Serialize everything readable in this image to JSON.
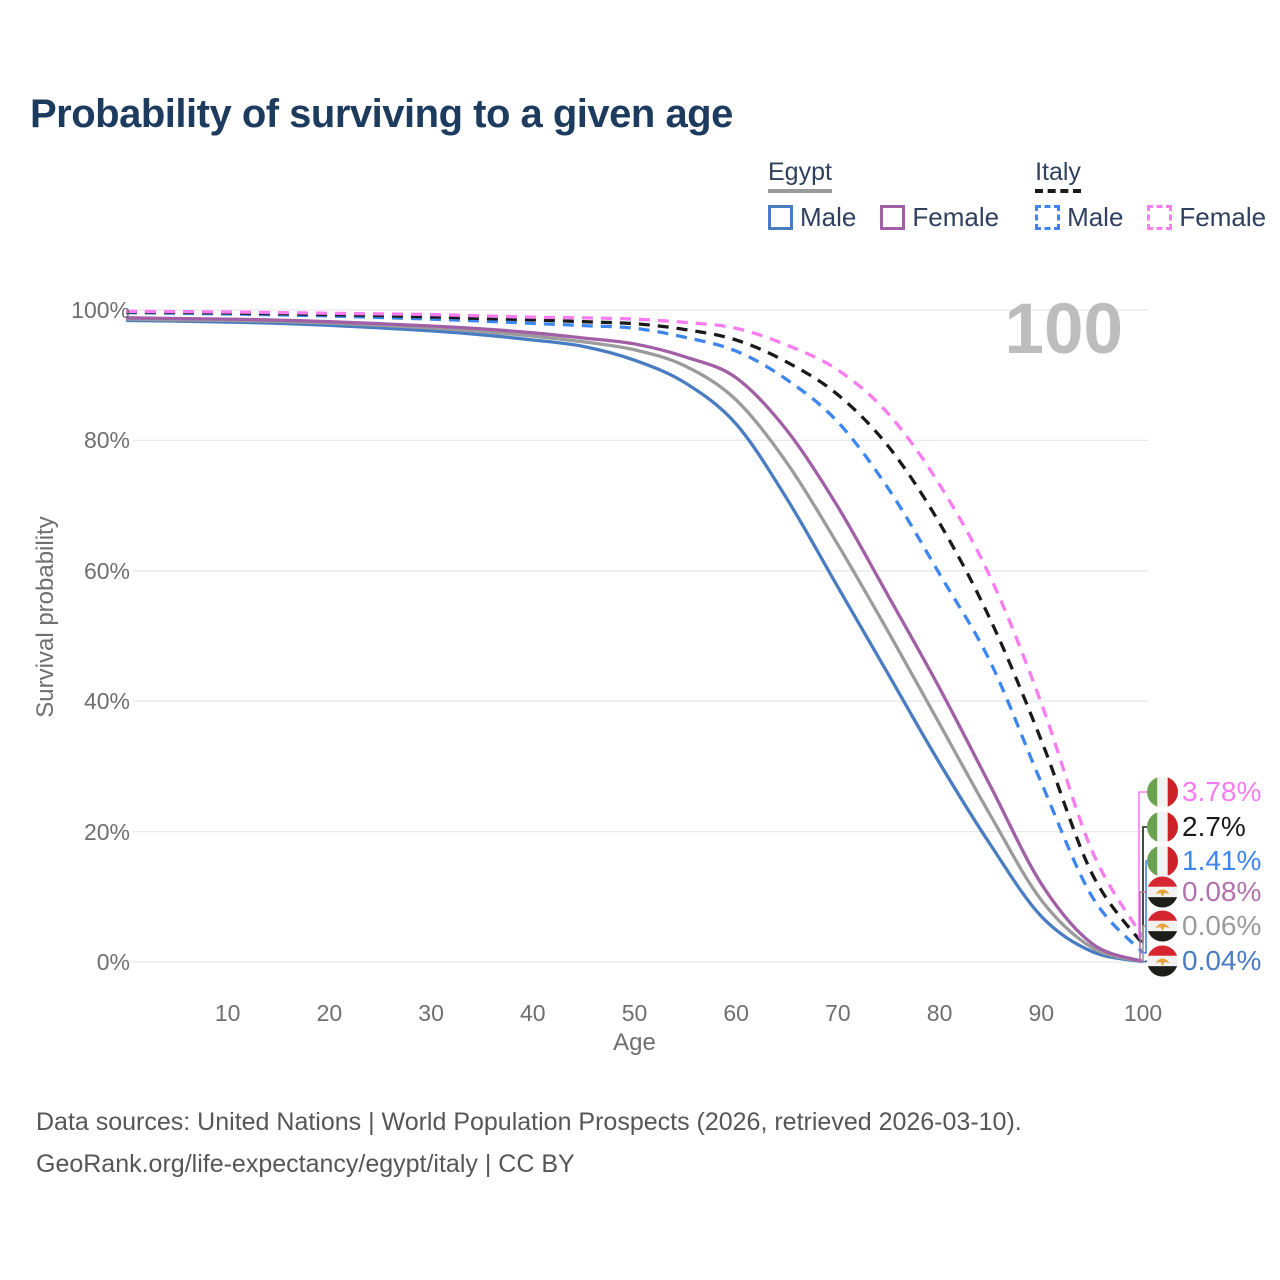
{
  "title": "Probability of surviving to a given age",
  "legend": {
    "egypt": {
      "label": "Egypt",
      "male": "Male",
      "female": "Female"
    },
    "italy": {
      "label": "Italy",
      "male": "Male",
      "female": "Female"
    }
  },
  "footer": {
    "line1": "Data sources: United Nations | World Population Prospects (2026, retrieved 2026-03-10).",
    "line2": "GeoRank.org/life-expectancy/egypt/italy | CC BY"
  },
  "colors": {
    "title": "#1c3b5e",
    "legend_text": "#2f415f",
    "egypt_underline": "#9a9a9a",
    "italy_underline": "#1a1a1a",
    "egypt_male": "#4a7cc1",
    "egypt_both": "#9b9b9b",
    "egypt_female": "#a160a5",
    "italy_male": "#3d86f0",
    "italy_both": "#1a1a1a",
    "italy_female": "#f97df0",
    "egypt_female_label": "#b272ad",
    "grid": "#e8e8e8",
    "axis_text": "#6f6f6f",
    "watermark": "#bdbdbd",
    "source_text": "#565656"
  },
  "chart_data": {
    "type": "line",
    "title": "Probability of surviving to a given age",
    "xlabel": "Age",
    "ylabel": "Survival probability",
    "xlim": [
      0,
      100
    ],
    "ylim": [
      0,
      100
    ],
    "grid": "horizontal-only",
    "x_ticks": [
      10,
      20,
      30,
      40,
      50,
      60,
      70,
      80,
      90,
      100
    ],
    "y_ticks": [
      0,
      20,
      40,
      60,
      80,
      100
    ],
    "y_tick_suffix": "%",
    "watermark": "100",
    "ages": [
      0,
      5,
      10,
      15,
      20,
      25,
      30,
      35,
      40,
      45,
      50,
      55,
      60,
      65,
      70,
      75,
      80,
      85,
      90,
      95,
      100
    ],
    "series": [
      {
        "name": "Italy Female",
        "country": "Italy",
        "sex": "Female",
        "line_style": "dashed",
        "color": "#f97df0",
        "label_color": "#f97df0",
        "end_label": "3.78%",
        "flag": "italy",
        "values": [
          99.8,
          99.75,
          99.7,
          99.6,
          99.5,
          99.4,
          99.3,
          99.1,
          98.9,
          98.8,
          98.6,
          98.1,
          97.2,
          94.6,
          90.8,
          84.0,
          73.2,
          59.0,
          39.7,
          17.0,
          3.78
        ]
      },
      {
        "name": "Italy Both sexes",
        "country": "Italy",
        "sex": "Both sexes",
        "line_style": "dashed",
        "color": "#1a1a1a",
        "label_color": "#1a1a1a",
        "end_label": "2.7%",
        "flag": "italy",
        "values": [
          99.7,
          99.65,
          99.55,
          99.45,
          99.3,
          99.15,
          98.95,
          98.7,
          98.5,
          98.2,
          97.9,
          97.0,
          95.4,
          92.0,
          87.0,
          79.0,
          67.3,
          52.5,
          34.0,
          13.5,
          2.7
        ]
      },
      {
        "name": "Italy Male",
        "country": "Italy",
        "sex": "Male",
        "line_style": "dashed",
        "color": "#3d86f0",
        "label_color": "#3d86f0",
        "end_label": "1.41%",
        "flag": "italy",
        "values": [
          99.6,
          99.5,
          99.4,
          99.25,
          99.1,
          98.85,
          98.6,
          98.3,
          97.95,
          97.6,
          97.2,
          95.8,
          93.7,
          89.3,
          82.8,
          72.5,
          59.5,
          46.0,
          27.5,
          10.0,
          1.41
        ]
      },
      {
        "name": "Egypt Female",
        "country": "Egypt",
        "sex": "Female",
        "line_style": "solid",
        "color": "#a160a5",
        "label_color": "#b272ad",
        "end_label": "0.08%",
        "flag": "egypt",
        "values": [
          98.8,
          98.7,
          98.6,
          98.45,
          98.2,
          97.9,
          97.55,
          97.1,
          96.5,
          95.7,
          94.8,
          92.8,
          89.6,
          81.5,
          69.8,
          56.0,
          42.0,
          27.0,
          12.0,
          2.8,
          0.08
        ]
      },
      {
        "name": "Egypt Both sexes",
        "country": "Egypt",
        "sex": "Both sexes",
        "line_style": "solid",
        "color": "#9b9b9b",
        "label_color": "#9b9b9b",
        "end_label": "0.06%",
        "flag": "egypt",
        "values": [
          98.6,
          98.5,
          98.4,
          98.25,
          98.0,
          97.65,
          97.25,
          96.7,
          96.0,
          95.1,
          93.9,
          91.4,
          86.2,
          76.5,
          64.0,
          50.5,
          36.5,
          22.5,
          9.5,
          2.2,
          0.06
        ]
      },
      {
        "name": "Egypt Male",
        "country": "Egypt",
        "sex": "Male",
        "line_style": "solid",
        "color": "#4a7cc1",
        "label_color": "#4a7cc1",
        "end_label": "0.04%",
        "flag": "egypt",
        "values": [
          98.4,
          98.3,
          98.15,
          97.95,
          97.65,
          97.25,
          96.8,
          96.2,
          95.4,
          94.4,
          92.3,
          88.8,
          82.5,
          71.0,
          57.5,
          44.0,
          30.5,
          18.0,
          7.0,
          1.6,
          0.04
        ]
      }
    ]
  }
}
